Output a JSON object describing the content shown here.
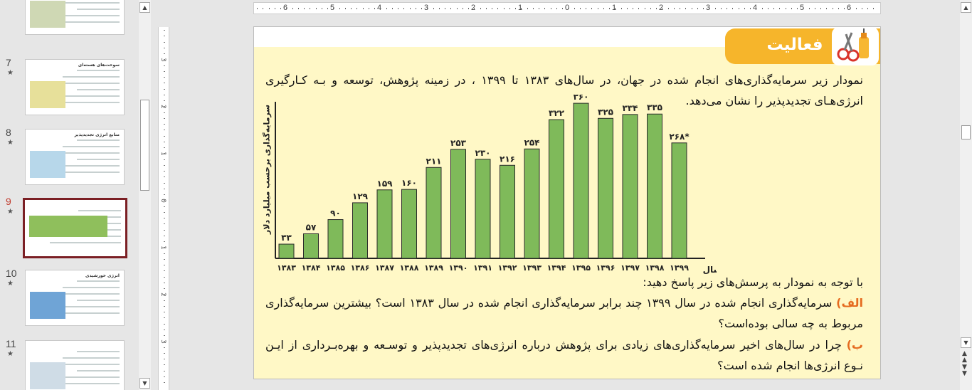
{
  "thumbnails": [
    {
      "num": "",
      "star": "★"
    },
    {
      "num": "7",
      "star": "★",
      "title": "سوخت‌های هسته‌ای"
    },
    {
      "num": "8",
      "star": "★",
      "title": "منابع انرژی تجدیدپذیر"
    },
    {
      "num": "9",
      "star": "★",
      "active": true
    },
    {
      "num": "10",
      "star": "★",
      "title": "انرژی خورشیدی"
    },
    {
      "num": "11",
      "star": "★"
    }
  ],
  "hruler": {
    "labels": [
      "6",
      "5",
      "4",
      "3",
      "2",
      "1",
      "0",
      "1",
      "2",
      "3",
      "4",
      "5",
      "6"
    ]
  },
  "vruler": {
    "labels": [
      "3",
      "2",
      "1",
      "0",
      "1",
      "2",
      "3"
    ]
  },
  "slide": {
    "badge_title": "فعالیت",
    "intro": "نمودار زیر سرمایه‌گذاری‌های انجام شده در جهان، در سال‌های ۱۳۸۳ تا ۱۳۹۹ ، در زمینه پژوهش، توسعه و بـه کـارگیری انرژی‌هـای تجدیدپذیر را نشان می‌دهد.",
    "prompt": "با توجه به نمودار به پرسش‌های زیر پاسخ دهید:",
    "q1_label": "الف)",
    "q1_text": " سرمایه‌گذاری انجام شده در سال ۱۳۹۹ چند برابر سرمایه‌گذاری انجام شده در سال ۱۳۸۳ است؟ بیشترین سرمایه‌گذاری مربوط به چه سالی بوده‌است؟",
    "q2_label": "ب)",
    "q2_text": " چرا در سال‌های اخیر سرمایه‌گذاری‌های زیادی برای پژوهش درباره انرژی‌های تجدیدپذیر و توسـعه و بهره‌بـرداری از ایـن نـوع انرژی‌ها انجام شده است؟"
  },
  "chart_data": {
    "type": "bar",
    "ylabel": "سرمایه‌گذاری برحسب میلیارد دلار",
    "xlabel": "سال",
    "categories": [
      "۱۳۸۳",
      "۱۳۸۴",
      "۱۳۸۵",
      "۱۳۸۶",
      "۱۳۸۷",
      "۱۳۸۸",
      "۱۳۸۹",
      "۱۳۹۰",
      "۱۳۹۱",
      "۱۳۹۲",
      "۱۳۹۳",
      "۱۳۹۴",
      "۱۳۹۵",
      "۱۳۹۶",
      "۱۳۹۷",
      "۱۳۹۸",
      "۱۳۹۹"
    ],
    "values": [
      33,
      57,
      90,
      129,
      159,
      160,
      211,
      253,
      230,
      216,
      254,
      322,
      360,
      325,
      334,
      335,
      268
    ],
    "value_labels": [
      "۳۳",
      "۵۷",
      "۹۰",
      "۱۲۹",
      "۱۵۹",
      "۱۶۰",
      "۲۱۱",
      "۲۵۳",
      "۲۳۰",
      "۲۱۶",
      "۲۵۴",
      "۳۲۲",
      "۳۶۰",
      "۳۲۵",
      "۳۳۴",
      "۳۳۵",
      "۲۶۸*"
    ],
    "ylim": [
      0,
      380
    ],
    "bar_color": "#7fba5a",
    "grid": false
  },
  "colors": {
    "accent": "#f6b52b",
    "slide_bg": "#fff8c6",
    "question_label": "#e56b1f"
  }
}
